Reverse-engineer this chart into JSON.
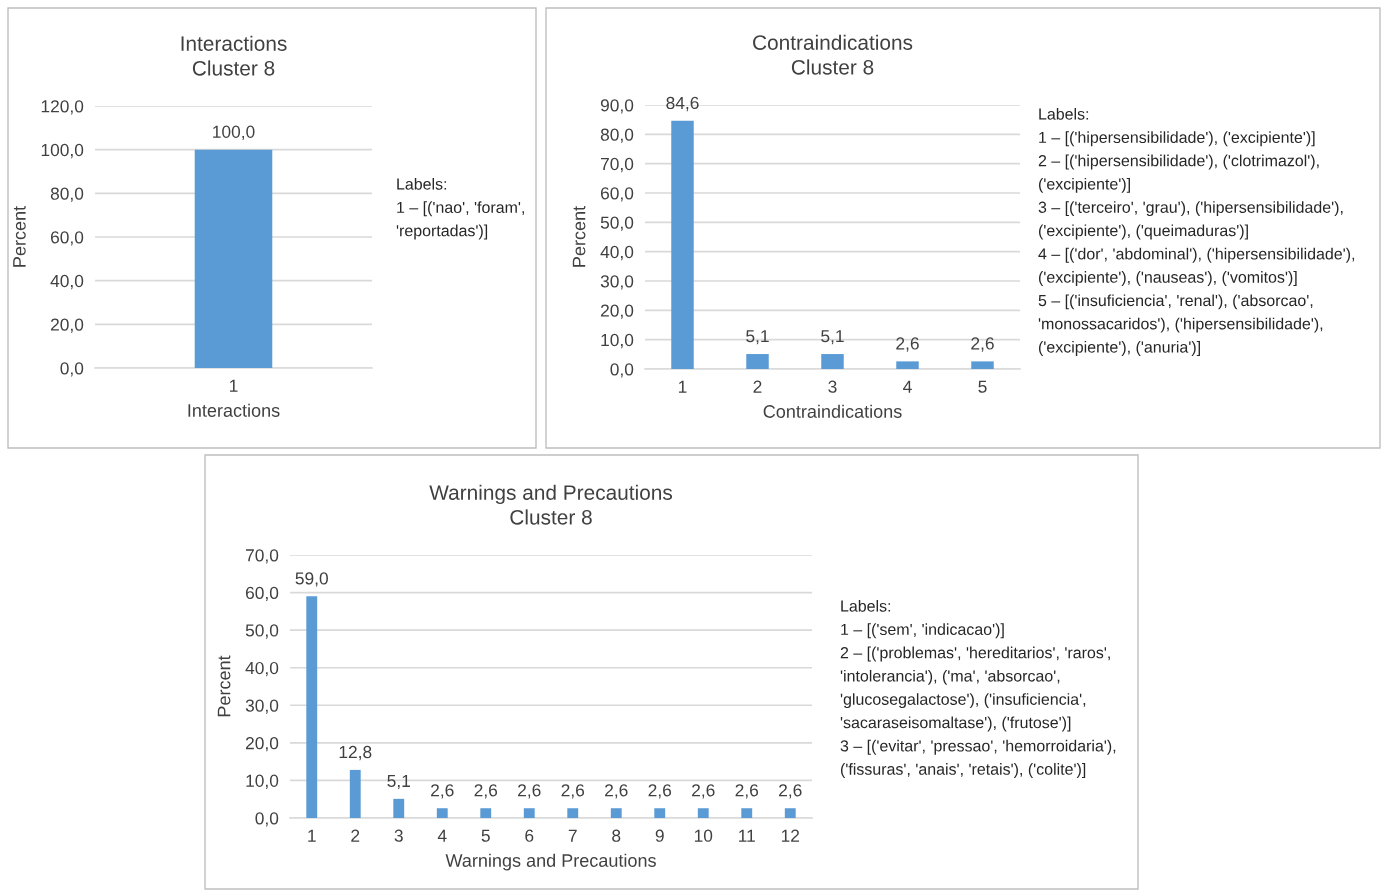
{
  "chart_data": [
    {
      "type": "bar",
      "title": "Interactions\nCluster 8",
      "xlabel": "Interactions",
      "ylabel": "Percent",
      "categories": [
        "1"
      ],
      "values": [
        100.0
      ],
      "color": "#5b9bd5",
      "value_labels": [
        "100,0"
      ],
      "ylim": [
        0,
        120
      ],
      "yticks": [
        {
          "value": 0,
          "label": "0,0"
        },
        {
          "value": 20,
          "label": "20,0"
        },
        {
          "value": 40,
          "label": "40,0"
        },
        {
          "value": 60,
          "label": "60,0"
        },
        {
          "value": 80,
          "label": "80,0"
        },
        {
          "value": 100,
          "label": "100,0"
        },
        {
          "value": 120,
          "label": "120,0"
        }
      ],
      "grid": "y",
      "annotations": [
        "Labels:",
        "1 – [('nao', 'foram',",
        "'reportadas')]"
      ]
    },
    {
      "type": "bar",
      "title": "Contraindications\nCluster 8",
      "xlabel": "Contraindications",
      "ylabel": "Percent",
      "categories": [
        "1",
        "2",
        "3",
        "4",
        "5"
      ],
      "values": [
        84.6,
        5.1,
        5.1,
        2.6,
        2.6
      ],
      "color": "#5b9bd5",
      "value_labels": [
        "84,6",
        "5,1",
        "5,1",
        "2,6",
        "2,6"
      ],
      "ylim": [
        0,
        90
      ],
      "yticks": [
        {
          "value": 0,
          "label": "0,0"
        },
        {
          "value": 10,
          "label": "10,0"
        },
        {
          "value": 20,
          "label": "20,0"
        },
        {
          "value": 30,
          "label": "30,0"
        },
        {
          "value": 40,
          "label": "40,0"
        },
        {
          "value": 50,
          "label": "50,0"
        },
        {
          "value": 60,
          "label": "60,0"
        },
        {
          "value": 70,
          "label": "70,0"
        },
        {
          "value": 80,
          "label": "80,0"
        },
        {
          "value": 90,
          "label": "90,0"
        }
      ],
      "grid": "y",
      "annotations": [
        "Labels:",
        "1 – [('hipersensibilidade'), ('excipiente')]",
        "2 – [('hipersensibilidade'), ('clotrimazol'),",
        "('excipiente')]",
        "3 – [('terceiro', 'grau'), ('hipersensibilidade'),",
        "('excipiente'), ('queimaduras')]",
        "4 – [('dor', 'abdominal'), ('hipersensibilidade'),",
        "('excipiente'), ('nauseas'), ('vomitos')]",
        "5 – [('insuficiencia', 'renal'), ('absorcao',",
        "'monossacaridos'), ('hipersensibilidade'),",
        "('excipiente'), ('anuria')]"
      ]
    },
    {
      "type": "bar",
      "title": "Warnings and Precautions\nCluster 8",
      "xlabel": "Warnings and Precautions",
      "ylabel": "Percent",
      "categories": [
        "1",
        "2",
        "3",
        "4",
        "5",
        "6",
        "7",
        "8",
        "9",
        "10",
        "11",
        "12"
      ],
      "values": [
        59.0,
        12.8,
        5.1,
        2.6,
        2.6,
        2.6,
        2.6,
        2.6,
        2.6,
        2.6,
        2.6,
        2.6
      ],
      "color": "#5b9bd5",
      "value_labels": [
        "59,0",
        "12,8",
        "5,1",
        "2,6",
        "2,6",
        "2,6",
        "2,6",
        "2,6",
        "2,6",
        "2,6",
        "2,6",
        "2,6"
      ],
      "ylim": [
        0,
        70
      ],
      "yticks": [
        {
          "value": 0,
          "label": "0,0"
        },
        {
          "value": 10,
          "label": "10,0"
        },
        {
          "value": 20,
          "label": "20,0"
        },
        {
          "value": 30,
          "label": "30,0"
        },
        {
          "value": 40,
          "label": "40,0"
        },
        {
          "value": 50,
          "label": "50,0"
        },
        {
          "value": 60,
          "label": "60,0"
        },
        {
          "value": 70,
          "label": "70,0"
        }
      ],
      "grid": "y",
      "annotations": [
        "Labels:",
        "1 – [('sem', 'indicacao')]",
        "2 – [('problemas', 'hereditarios', 'raros',",
        "'intolerancia'), ('ma', 'absorcao',",
        "'glucosegalactose'), ('insuficiencia',",
        "'sacaraseisomaltase'), ('frutose')]",
        "3 – [('evitar', 'pressao', 'hemorroidaria'),",
        "('fissuras', 'anais', 'retais'), ('colite')]"
      ]
    }
  ]
}
